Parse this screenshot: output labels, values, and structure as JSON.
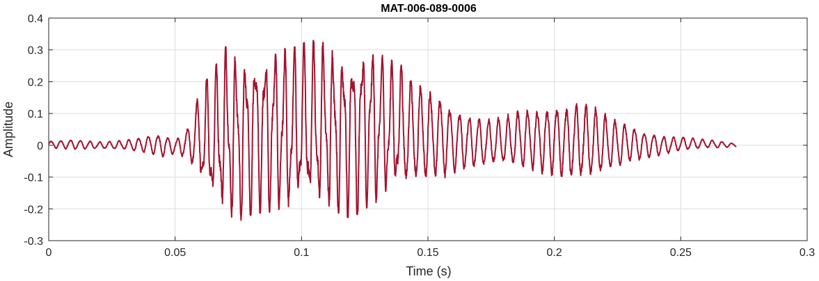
{
  "chart_data": {
    "type": "line",
    "title": "MAT-006-089-0006",
    "xlabel": "Time (s)",
    "ylabel": "Amplitude",
    "xlim": [
      0,
      0.3
    ],
    "ylim": [
      -0.3,
      0.4
    ],
    "grid": true,
    "x_ticks": [
      0,
      0.05,
      0.1,
      0.15,
      0.2,
      0.25,
      0.3
    ],
    "x_tick_labels": [
      "0",
      "0.05",
      "0.1",
      "0.15",
      "0.2",
      "0.25",
      "0.3"
    ],
    "y_ticks": [
      -0.3,
      -0.2,
      -0.1,
      0,
      0.1,
      0.2,
      0.3,
      0.4
    ],
    "y_tick_labels": [
      "-0.3",
      "-0.2",
      "-0.1",
      "0",
      "0.1",
      "0.2",
      "0.3",
      "0.4"
    ],
    "series": [
      {
        "color": "#a2142f",
        "x_start": 0,
        "x_end": 0.272,
        "envelope": {
          "t": [
            0,
            0.01,
            0.02,
            0.03,
            0.04,
            0.045,
            0.05,
            0.055,
            0.058,
            0.062,
            0.066,
            0.07,
            0.075,
            0.08,
            0.085,
            0.09,
            0.095,
            0.1,
            0.105,
            0.11,
            0.115,
            0.12,
            0.125,
            0.13,
            0.135,
            0.14,
            0.145,
            0.15,
            0.155,
            0.16,
            0.165,
            0.17,
            0.175,
            0.18,
            0.185,
            0.19,
            0.195,
            0.2,
            0.205,
            0.21,
            0.215,
            0.22,
            0.225,
            0.23,
            0.235,
            0.24,
            0.245,
            0.25,
            0.255,
            0.26,
            0.265,
            0.272
          ],
          "upper": [
            0.015,
            0.02,
            0.012,
            0.018,
            0.035,
            0.04,
            0.02,
            0.06,
            0.15,
            0.2,
            0.25,
            0.31,
            0.29,
            0.3,
            0.31,
            0.32,
            0.3,
            0.32,
            0.33,
            0.32,
            0.31,
            0.32,
            0.33,
            0.3,
            0.27,
            0.25,
            0.22,
            0.2,
            0.17,
            0.13,
            0.11,
            0.1,
            0.09,
            0.1,
            0.12,
            0.13,
            0.13,
            0.14,
            0.14,
            0.15,
            0.14,
            0.11,
            0.09,
            0.07,
            0.05,
            0.04,
            0.03,
            0.03,
            0.025,
            0.02,
            0.015,
            0.005
          ],
          "lower": [
            -0.01,
            -0.015,
            -0.012,
            -0.015,
            -0.03,
            -0.04,
            -0.03,
            -0.05,
            -0.1,
            -0.17,
            -0.2,
            -0.23,
            -0.24,
            -0.22,
            -0.21,
            -0.21,
            -0.22,
            -0.2,
            -0.21,
            -0.2,
            -0.22,
            -0.23,
            -0.2,
            -0.18,
            -0.16,
            -0.15,
            -0.14,
            -0.13,
            -0.12,
            -0.1,
            -0.09,
            -0.08,
            -0.07,
            -0.07,
            -0.08,
            -0.09,
            -0.1,
            -0.11,
            -0.12,
            -0.12,
            -0.12,
            -0.1,
            -0.08,
            -0.06,
            -0.05,
            -0.04,
            -0.03,
            -0.02,
            -0.015,
            -0.01,
            -0.01,
            -0.005
          ]
        },
        "dominant_frequency_hz": 260,
        "samples": 3000
      }
    ]
  }
}
